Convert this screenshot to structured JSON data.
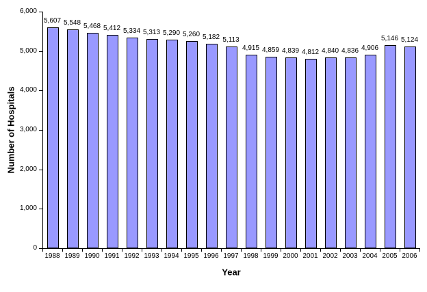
{
  "chart_data": {
    "type": "bar",
    "title": "",
    "xlabel": "Year",
    "ylabel": "Number of Hospitals",
    "categories": [
      "1988",
      "1989",
      "1990",
      "1991",
      "1992",
      "1993",
      "1994",
      "1995",
      "1996",
      "1997",
      "1998",
      "1999",
      "2000",
      "2001",
      "2002",
      "2003",
      "2004",
      "2005",
      "2006"
    ],
    "values": [
      5607,
      5548,
      5468,
      5412,
      5334,
      5313,
      5290,
      5260,
      5182,
      5113,
      4915,
      4859,
      4839,
      4812,
      4840,
      4836,
      4906,
      5146,
      5124
    ],
    "value_labels": [
      "5,607",
      "5,548",
      "5,468",
      "5,412",
      "5,334",
      "5,313",
      "5,290",
      "5,260",
      "5,182",
      "5,113",
      "4,915",
      "4,859",
      "4,839",
      "4,812",
      "4,840",
      "4,836",
      "4,906",
      "5,146",
      "5,124"
    ],
    "ylim": [
      0,
      6000
    ],
    "ytick_interval": 1000,
    "ytick_labels": [
      "0",
      "1,000",
      "2,000",
      "3,000",
      "4,000",
      "5,000",
      "6,000"
    ],
    "bar_color": "#9999FF",
    "bar_border_color": "#000000",
    "grid": false,
    "legend": "none",
    "data_labels_shown": true
  }
}
